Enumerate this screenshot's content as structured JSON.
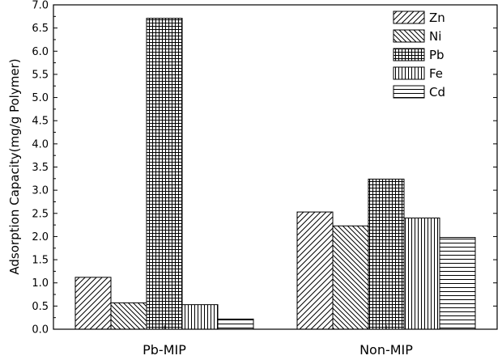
{
  "chart_data": {
    "type": "bar",
    "categories": [
      "Pb-MIP",
      "Non-MIP"
    ],
    "series": [
      {
        "name": "Zn",
        "values": [
          1.12,
          2.53
        ],
        "pattern": "diag-forward"
      },
      {
        "name": "Ni",
        "values": [
          0.57,
          2.23
        ],
        "pattern": "diag-back"
      },
      {
        "name": "Pb",
        "values": [
          6.71,
          3.24
        ],
        "pattern": "grid"
      },
      {
        "name": "Fe",
        "values": [
          0.53,
          2.4
        ],
        "pattern": "vertical"
      },
      {
        "name": "Cd",
        "values": [
          0.22,
          1.98
        ],
        "pattern": "horizontal"
      }
    ],
    "title": "",
    "xlabel": "",
    "ylabel": "Adsorption Capacity(mg/g Polymer)",
    "ylim": [
      0,
      7.0
    ],
    "yticks": [
      "0.0",
      "0.5",
      "1.0",
      "1.5",
      "2.0",
      "2.5",
      "3.0",
      "3.5",
      "4.0",
      "4.5",
      "5.0",
      "5.5",
      "6.0",
      "6.5",
      "7.0"
    ],
    "grid": false,
    "legend_position": "top-right",
    "colors": {
      "stroke": "#000000",
      "background": "#ffffff"
    }
  }
}
